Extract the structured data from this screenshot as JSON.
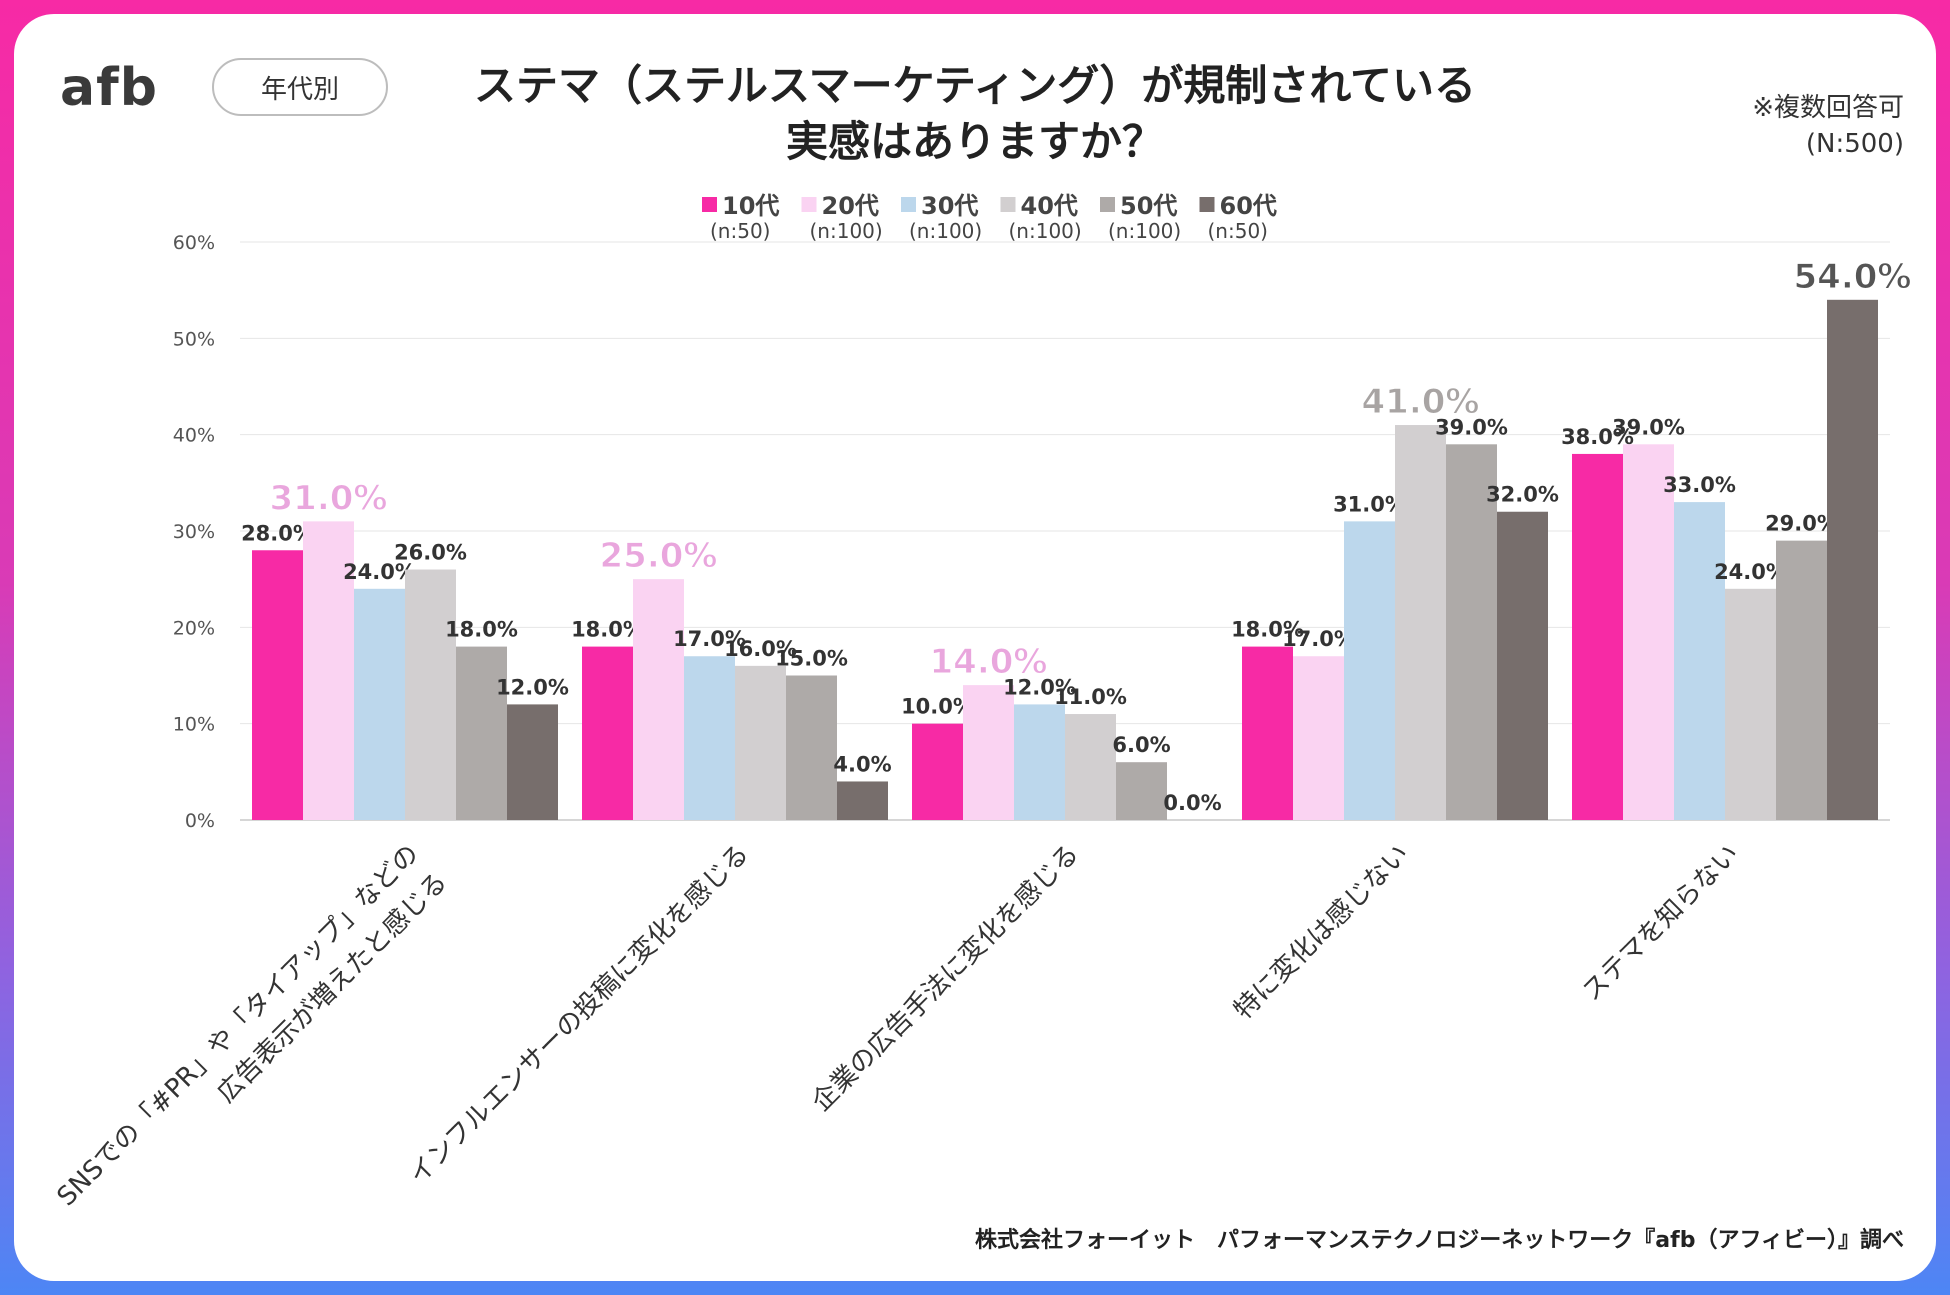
{
  "header": {
    "logo": "afb",
    "tag": "年代別",
    "title_line1": "ステマ（ステルスマーケティング）が規制されている",
    "title_line2": "実感はありますか？",
    "note_line1": "※複数回答可",
    "note_line2": "(N:500)"
  },
  "footer": {
    "source": "株式会社フォーイット　パフォーマンステクノロジーネットワーク『afb（アフィビー）』調べ"
  },
  "colors": {
    "s10": "#f72aa5",
    "s20": "#fad3f2",
    "s30": "#bcd7ec",
    "s40": "#d2cfd0",
    "s50": "#aeaaa8",
    "s60": "#776e6c",
    "highlight_pink": "#e9a6dd",
    "highlight_gray": "#a8a4a3",
    "highlight_dark": "#555555"
  },
  "chart_data": {
    "type": "bar",
    "title": "ステマ（ステルスマーケティング）が規制されている実感はありますか？",
    "ylim": [
      0,
      60
    ],
    "yticks": [
      "0%",
      "10%",
      "20%",
      "30%",
      "40%",
      "50%",
      "60%"
    ],
    "grid": true,
    "legend_position": "top-center",
    "categories": [
      [
        "SNSでの「#PR」や「タイアップ」などの",
        "広告表示が増えたと感じる"
      ],
      [
        "インフルエンサーの投稿に変化を感じる"
      ],
      [
        "企業の広告手法に変化を感じる"
      ],
      [
        "特に変化は感じない"
      ],
      [
        "ステマを知らない"
      ]
    ],
    "series": [
      {
        "name": "10代",
        "n": "(n:50)",
        "values": [
          28,
          18,
          10,
          18,
          38
        ],
        "labels": [
          "28.0%",
          "18.0%",
          "10.0%",
          "18.0%",
          "38.0%"
        ]
      },
      {
        "name": "20代",
        "n": "(n:100)",
        "values": [
          31,
          25,
          14,
          17,
          39
        ],
        "labels": [
          "31.0%",
          "25.0%",
          "14.0%",
          "17.0%",
          "39.0%"
        ]
      },
      {
        "name": "30代",
        "n": "(n:100)",
        "values": [
          24,
          17,
          12,
          31,
          33
        ],
        "labels": [
          "24.0%",
          "17.0%",
          "12.0%",
          "31.0%",
          "33.0%"
        ]
      },
      {
        "name": "40代",
        "n": "(n:100)",
        "values": [
          26,
          16,
          11,
          41,
          24
        ],
        "labels": [
          "26.0%",
          "16.0%",
          "11.0%",
          "41.0%",
          "24.0%"
        ]
      },
      {
        "name": "50代",
        "n": "(n:100)",
        "values": [
          18,
          15,
          6,
          39,
          29
        ],
        "labels": [
          "18.0%",
          "15.0%",
          "6.0%",
          "39.0%",
          "29.0%"
        ]
      },
      {
        "name": "60代",
        "n": "(n:50)",
        "values": [
          12,
          4,
          0,
          32,
          54
        ],
        "labels": [
          "12.0%",
          "4.0%",
          "0.0%",
          "32.0%",
          "54.0%"
        ]
      }
    ],
    "highlights": [
      {
        "category": 0,
        "series": 1
      },
      {
        "category": 1,
        "series": 1
      },
      {
        "category": 2,
        "series": 1
      },
      {
        "category": 3,
        "series": 3
      },
      {
        "category": 4,
        "series": 5
      }
    ]
  }
}
